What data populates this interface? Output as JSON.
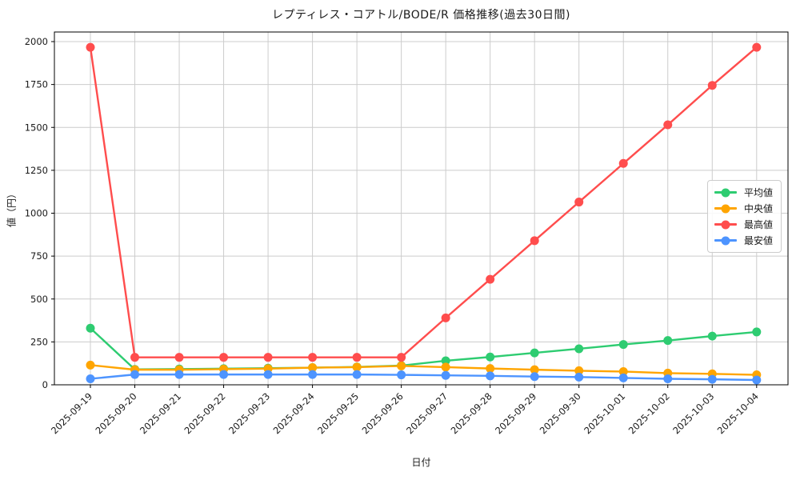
{
  "figure": {
    "background_color": "#ffffff",
    "axes_color": "#000000",
    "text_color": "#1a1a1a"
  },
  "chart_data": {
    "type": "line",
    "title": "レプティレス・コアトル/BODE/R 価格推移(過去30日間)",
    "xlabel": "日付",
    "ylabel": "値（円）",
    "x": [
      "2025-09-19",
      "2025-09-20",
      "2025-09-21",
      "2025-09-22",
      "2025-09-23",
      "2025-09-24",
      "2025-09-25",
      "2025-09-26",
      "2025-09-27",
      "2025-09-28",
      "2025-09-29",
      "2025-09-30",
      "2025-10-01",
      "2025-10-02",
      "2025-10-03",
      "2025-10-04"
    ],
    "ylim": [
      0,
      2000
    ],
    "yticks": [
      0,
      250,
      500,
      750,
      1000,
      1250,
      1500,
      1750,
      2000
    ],
    "grid": true,
    "grid_color": "#cccccc",
    "legend_position": "center-right",
    "marker": "circle",
    "series": [
      {
        "name": "平均値",
        "color": "#2ecc71",
        "values": [
          330,
          90,
          92,
          94,
          97,
          100,
          104,
          112,
          140,
          162,
          186,
          210,
          235,
          258,
          284,
          308
        ]
      },
      {
        "name": "中央値",
        "color": "#ffa500",
        "values": [
          115,
          88,
          88,
          91,
          94,
          100,
          103,
          110,
          103,
          95,
          88,
          82,
          77,
          68,
          64,
          58
        ]
      },
      {
        "name": "最高値",
        "color": "#ff4d4d",
        "values": [
          1967,
          160,
          160,
          160,
          160,
          160,
          160,
          160,
          390,
          615,
          840,
          1065,
          1290,
          1515,
          1745,
          1967
        ]
      },
      {
        "name": "最安値",
        "color": "#4d94ff",
        "values": [
          35,
          60,
          60,
          60,
          60,
          60,
          60,
          58,
          55,
          52,
          48,
          45,
          40,
          35,
          32,
          28
        ]
      }
    ]
  }
}
